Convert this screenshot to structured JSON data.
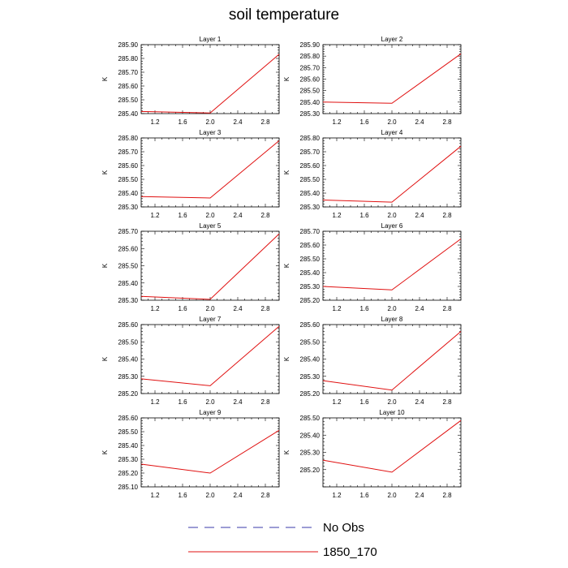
{
  "title": "soil temperature",
  "colors": {
    "obs": "#3a3aa8",
    "model": "#e01010"
  },
  "legend": [
    {
      "label": "No Obs",
      "style": "dashed",
      "color": "#3a3aa8"
    },
    {
      "label": "1850_170",
      "style": "solid",
      "color": "#e01010"
    }
  ],
  "chart_data": [
    {
      "type": "line",
      "title": "Layer 1",
      "ylabel": "K",
      "xlim": [
        1.0,
        3.0
      ],
      "xticks": [
        1.2,
        1.6,
        2.0,
        2.4,
        2.8
      ],
      "ylim": [
        285.4,
        285.9
      ],
      "yticks": [
        285.4,
        285.5,
        285.6,
        285.7,
        285.8,
        285.9
      ],
      "series": [
        {
          "name": "1850_170",
          "x": [
            1.0,
            2.0,
            3.0
          ],
          "y": [
            285.415,
            285.405,
            285.83
          ]
        }
      ]
    },
    {
      "type": "line",
      "title": "Layer 2",
      "ylabel": "K",
      "xlim": [
        1.0,
        3.0
      ],
      "xticks": [
        1.2,
        1.6,
        2.0,
        2.4,
        2.8
      ],
      "ylim": [
        285.3,
        285.9
      ],
      "yticks": [
        285.3,
        285.4,
        285.5,
        285.6,
        285.7,
        285.8,
        285.9
      ],
      "series": [
        {
          "name": "1850_170",
          "x": [
            1.0,
            2.0,
            3.0
          ],
          "y": [
            285.4,
            285.39,
            285.82
          ]
        }
      ]
    },
    {
      "type": "line",
      "title": "Layer 3",
      "ylabel": "K",
      "xlim": [
        1.0,
        3.0
      ],
      "xticks": [
        1.2,
        1.6,
        2.0,
        2.4,
        2.8
      ],
      "ylim": [
        285.3,
        285.8
      ],
      "yticks": [
        285.3,
        285.4,
        285.5,
        285.6,
        285.7,
        285.8
      ],
      "series": [
        {
          "name": "1850_170",
          "x": [
            1.0,
            2.0,
            3.0
          ],
          "y": [
            285.375,
            285.365,
            285.78
          ]
        }
      ]
    },
    {
      "type": "line",
      "title": "Layer 4",
      "ylabel": "K",
      "xlim": [
        1.0,
        3.0
      ],
      "xticks": [
        1.2,
        1.6,
        2.0,
        2.4,
        2.8
      ],
      "ylim": [
        285.3,
        285.8
      ],
      "yticks": [
        285.3,
        285.4,
        285.5,
        285.6,
        285.7,
        285.8
      ],
      "series": [
        {
          "name": "1850_170",
          "x": [
            1.0,
            2.0,
            3.0
          ],
          "y": [
            285.35,
            285.335,
            285.74
          ]
        }
      ]
    },
    {
      "type": "line",
      "title": "Layer 5",
      "ylabel": "K",
      "xlim": [
        1.0,
        3.0
      ],
      "xticks": [
        1.2,
        1.6,
        2.0,
        2.4,
        2.8
      ],
      "ylim": [
        285.3,
        285.7
      ],
      "yticks": [
        285.3,
        285.4,
        285.5,
        285.6,
        285.7
      ],
      "series": [
        {
          "name": "1850_170",
          "x": [
            1.0,
            2.0,
            3.0
          ],
          "y": [
            285.322,
            285.305,
            285.685
          ]
        }
      ]
    },
    {
      "type": "line",
      "title": "Layer 6",
      "ylabel": "K",
      "xlim": [
        1.0,
        3.0
      ],
      "xticks": [
        1.2,
        1.6,
        2.0,
        2.4,
        2.8
      ],
      "ylim": [
        285.2,
        285.7
      ],
      "yticks": [
        285.2,
        285.3,
        285.4,
        285.5,
        285.6,
        285.7
      ],
      "series": [
        {
          "name": "1850_170",
          "x": [
            1.0,
            2.0,
            3.0
          ],
          "y": [
            285.3,
            285.275,
            285.645
          ]
        }
      ]
    },
    {
      "type": "line",
      "title": "Layer 7",
      "ylabel": "K",
      "xlim": [
        1.0,
        3.0
      ],
      "xticks": [
        1.2,
        1.6,
        2.0,
        2.4,
        2.8
      ],
      "ylim": [
        285.2,
        285.6
      ],
      "yticks": [
        285.2,
        285.3,
        285.4,
        285.5,
        285.6
      ],
      "series": [
        {
          "name": "1850_170",
          "x": [
            1.0,
            2.0,
            3.0
          ],
          "y": [
            285.285,
            285.245,
            285.59
          ]
        }
      ]
    },
    {
      "type": "line",
      "title": "Layer 8",
      "ylabel": "K",
      "xlim": [
        1.0,
        3.0
      ],
      "xticks": [
        1.2,
        1.6,
        2.0,
        2.4,
        2.8
      ],
      "ylim": [
        285.2,
        285.6
      ],
      "yticks": [
        285.2,
        285.3,
        285.4,
        285.5,
        285.6
      ],
      "series": [
        {
          "name": "1850_170",
          "x": [
            1.0,
            2.0,
            3.0
          ],
          "y": [
            285.275,
            285.22,
            285.56
          ]
        }
      ]
    },
    {
      "type": "line",
      "title": "Layer 9",
      "ylabel": "K",
      "xlim": [
        1.0,
        3.0
      ],
      "xticks": [
        1.2,
        1.6,
        2.0,
        2.4,
        2.8
      ],
      "ylim": [
        285.1,
        285.6
      ],
      "yticks": [
        285.1,
        285.2,
        285.3,
        285.4,
        285.5,
        285.6
      ],
      "series": [
        {
          "name": "1850_170",
          "x": [
            1.0,
            2.0,
            3.0
          ],
          "y": [
            285.265,
            285.2,
            285.51
          ]
        }
      ]
    },
    {
      "type": "line",
      "title": "Layer 10",
      "ylabel": "K",
      "xlim": [
        1.0,
        3.0
      ],
      "xticks": [
        1.2,
        1.6,
        2.0,
        2.4,
        2.8
      ],
      "ylim": [
        285.1,
        285.5
      ],
      "yticks": [
        285.2,
        285.3,
        285.4,
        285.5
      ],
      "series": [
        {
          "name": "1850_170",
          "x": [
            1.0,
            2.0,
            3.0
          ],
          "y": [
            285.255,
            285.185,
            285.485
          ]
        }
      ]
    }
  ]
}
